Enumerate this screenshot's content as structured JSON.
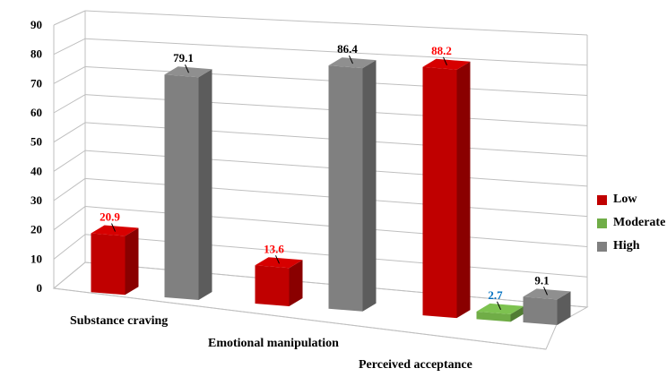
{
  "chart_data": {
    "type": "bar",
    "style": "3d-clustered",
    "categories": [
      "Substance craving",
      "Emotional manipulation",
      "Perceived acceptance"
    ],
    "series": [
      {
        "name": "Low",
        "color": "#C00000",
        "label_color": "#FF0000",
        "values": [
          20.9,
          13.6,
          88.2
        ]
      },
      {
        "name": "Moderate",
        "color": "#70AD47",
        "label_color": "#0070C0",
        "values": [
          null,
          null,
          2.7
        ]
      },
      {
        "name": "High",
        "color": "#808080",
        "label_color": "#000000",
        "values": [
          79.1,
          86.4,
          9.1
        ]
      }
    ],
    "y_ticks": [
      "0",
      "10",
      "20",
      "30",
      "40",
      "50",
      "60",
      "70",
      "80",
      "90"
    ],
    "ylim": [
      0,
      90
    ],
    "grid": true,
    "legend_position": "right"
  }
}
